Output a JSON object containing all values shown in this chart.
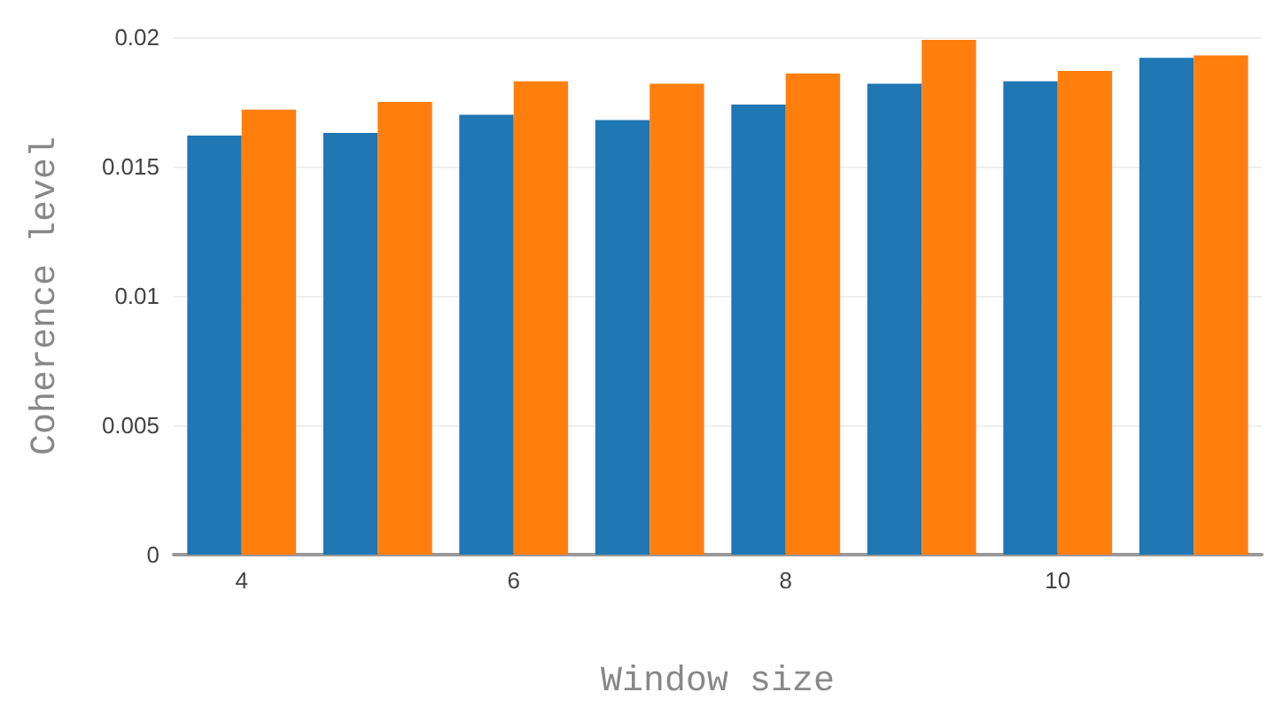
{
  "chart_data": {
    "type": "bar",
    "xlabel": "Window size",
    "ylabel": "Coherence level",
    "categories": [
      "4",
      null,
      "6",
      null,
      "8",
      null,
      "10",
      null
    ],
    "series": [
      {
        "color": "#1f77b4",
        "values": [
          0.0162,
          0.0163,
          0.017,
          0.0168,
          0.0174,
          0.0182,
          0.0183,
          0.0192
        ]
      },
      {
        "color": "#ff7f0e",
        "values": [
          0.0172,
          0.0175,
          0.0183,
          0.0182,
          0.0186,
          0.0199,
          0.0187,
          0.0193
        ]
      }
    ],
    "ylim": [
      0,
      0.02
    ],
    "yticks": [
      0,
      0.005,
      0.01,
      0.015,
      0.02
    ],
    "grid": "y"
  }
}
